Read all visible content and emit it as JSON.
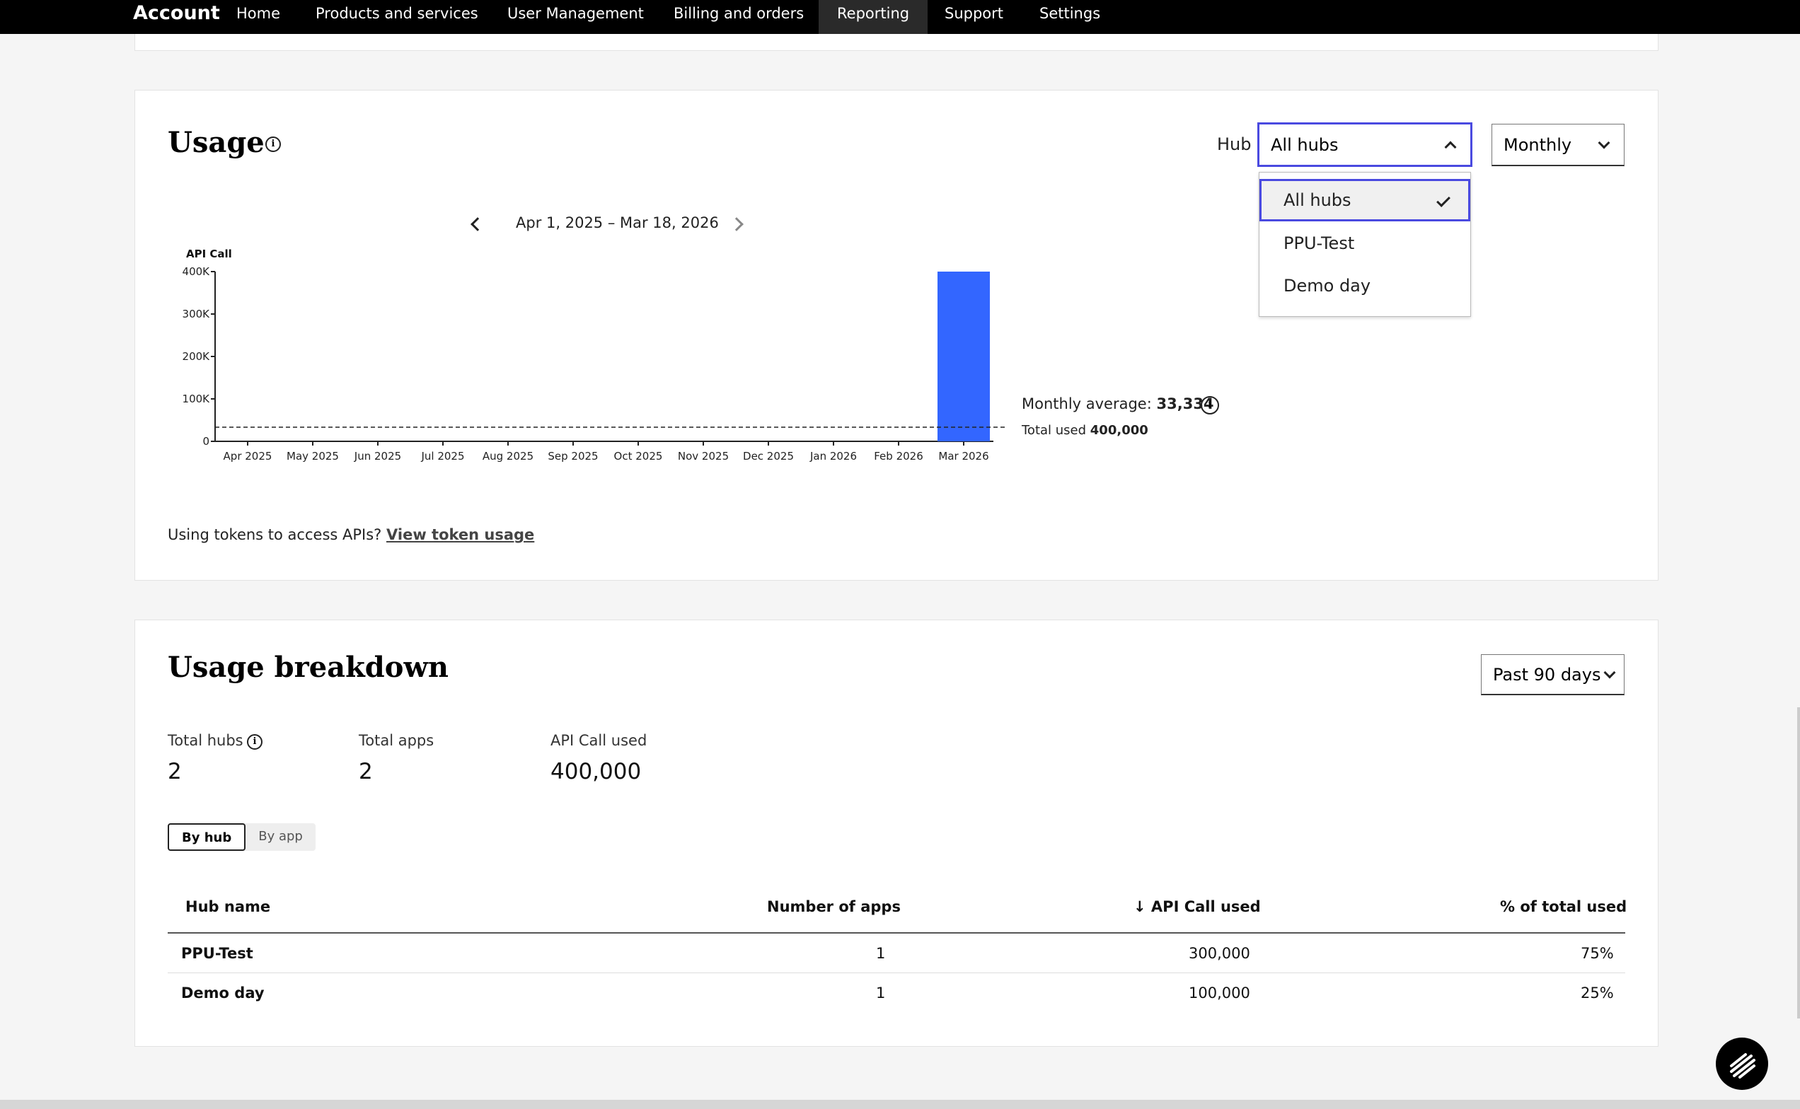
{
  "nav": {
    "brand": "Account",
    "items": [
      {
        "label": "Home"
      },
      {
        "label": "Products and services"
      },
      {
        "label": "User Management"
      },
      {
        "label": "Billing and orders"
      },
      {
        "label": "Reporting",
        "active": true
      },
      {
        "label": "Support"
      },
      {
        "label": "Settings"
      }
    ]
  },
  "usage": {
    "title": "Usage",
    "hub_label": "Hub",
    "hub_select": "All hubs",
    "period_select": "Monthly",
    "hub_options": [
      {
        "label": "All hubs",
        "selected": true
      },
      {
        "label": "PPU-Test"
      },
      {
        "label": "Demo day"
      }
    ],
    "date_range": "Apr 1, 2025 – Mar 18, 2026",
    "monthly_average_label": "Monthly average:",
    "monthly_average_value": "33,334",
    "total_used_label": "Total used",
    "total_used_value": "400,000",
    "token_text": "Using tokens to access APIs?",
    "token_link": "View token usage"
  },
  "chart_data": {
    "type": "bar",
    "ylabel": "API Call",
    "categories": [
      "Apr 2025",
      "May 2025",
      "Jun 2025",
      "Jul 2025",
      "Aug 2025",
      "Sep 2025",
      "Oct 2025",
      "Nov 2025",
      "Dec 2025",
      "Jan 2026",
      "Feb 2026",
      "Mar 2026"
    ],
    "values": [
      0,
      0,
      0,
      0,
      0,
      0,
      0,
      0,
      0,
      0,
      0,
      400000
    ],
    "yticks": [
      {
        "value": 0,
        "label": "0"
      },
      {
        "value": 100000,
        "label": "100K"
      },
      {
        "value": 200000,
        "label": "200K"
      },
      {
        "value": 300000,
        "label": "300K"
      },
      {
        "value": 400000,
        "label": "400K"
      }
    ],
    "ylim": [
      0,
      400000
    ],
    "average_line": 33334,
    "bar_color": "#3366ff",
    "grid": false
  },
  "breakdown": {
    "title": "Usage breakdown",
    "range_select": "Past 90 days",
    "stats": [
      {
        "label": "Total hubs",
        "value": "2"
      },
      {
        "label": "Total apps",
        "value": "2"
      },
      {
        "label": "API Call used",
        "value": "400,000"
      }
    ],
    "tabs": [
      "By hub",
      "By app"
    ],
    "columns": [
      "Hub name",
      "Number of apps",
      "API Call used",
      "% of total used"
    ],
    "rows": [
      {
        "name": "PPU-Test",
        "apps": "1",
        "used": "300,000",
        "pct": "75%"
      },
      {
        "name": "Demo day",
        "apps": "1",
        "used": "100,000",
        "pct": "25%"
      }
    ]
  }
}
